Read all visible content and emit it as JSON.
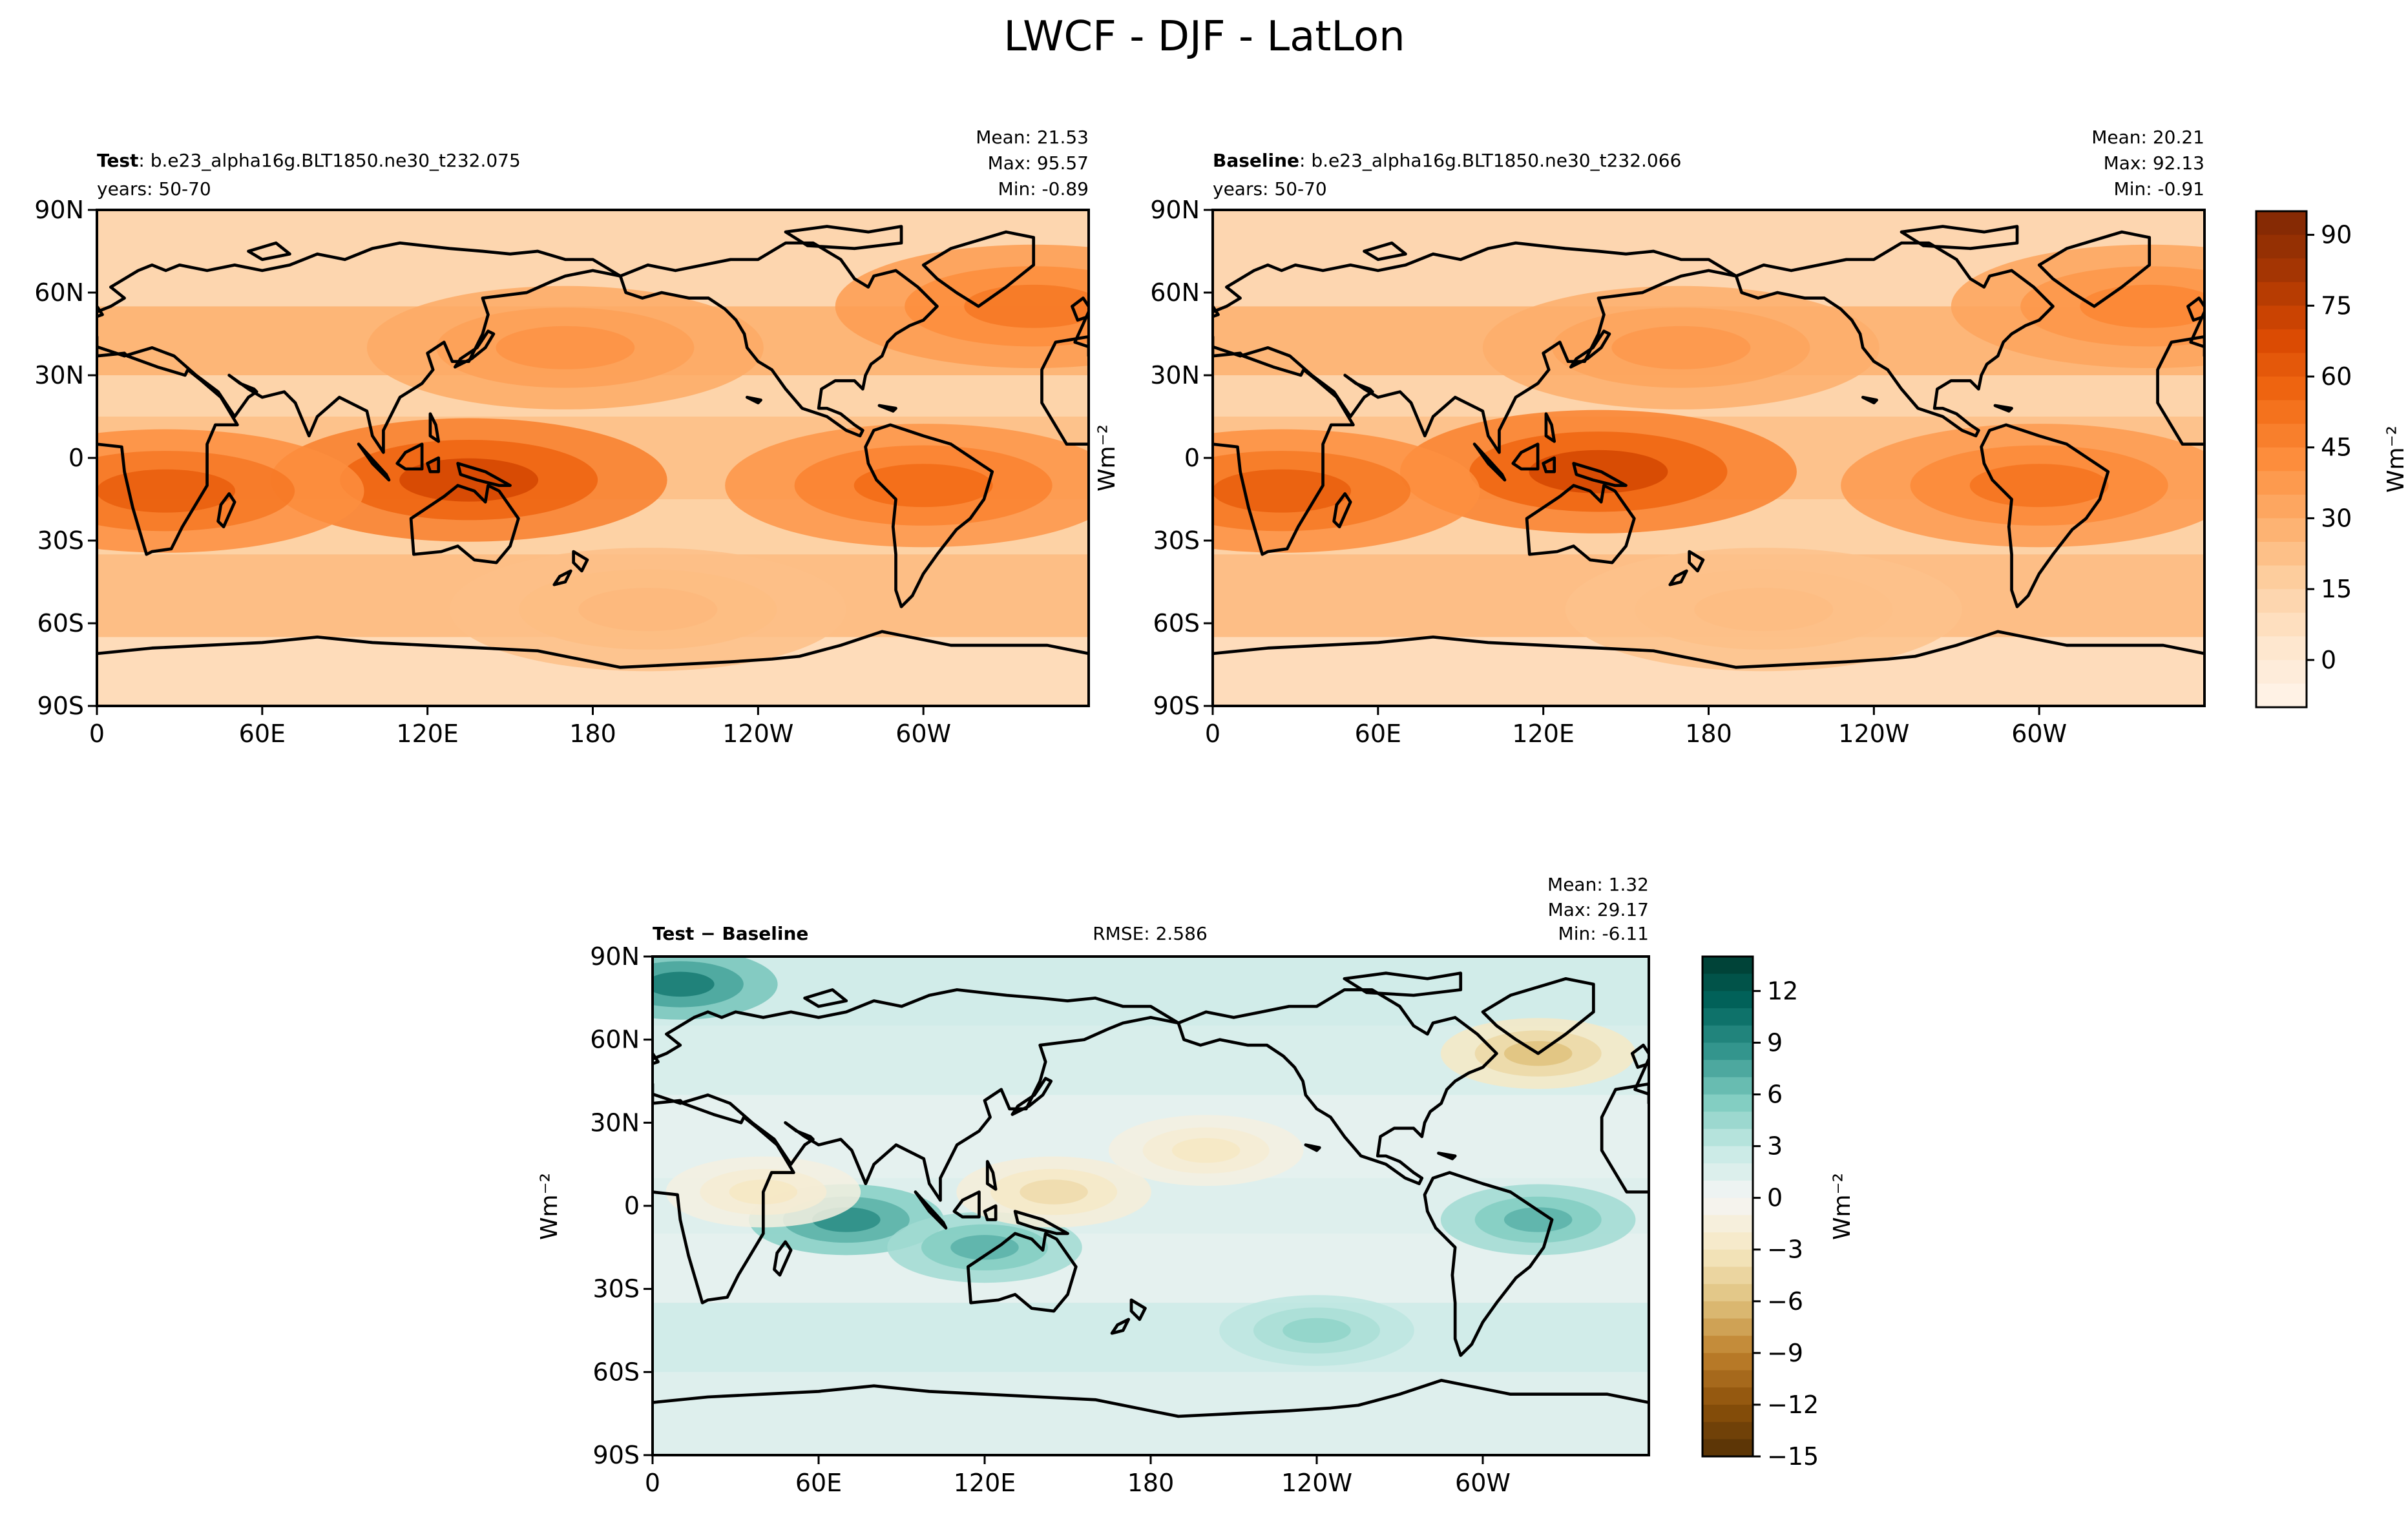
{
  "suptitle": "LWCF - DJF - LatLon",
  "colors": {
    "oranges": [
      "#fff5eb",
      "#fee6ce",
      "#fdd0a2",
      "#fdae6b",
      "#fd8d3c",
      "#f16913",
      "#d94801",
      "#a63603",
      "#7f2704"
    ],
    "brbg": [
      "#543005",
      "#8c510a",
      "#bf812d",
      "#dfc27d",
      "#f6e8c3",
      "#f5f5f5",
      "#c7eae5",
      "#80cdc1",
      "#35978f",
      "#01665e",
      "#003c30"
    ],
    "coast": "#000000",
    "ocean_base_test": "#fde3c8"
  },
  "panels": [
    {
      "key": "test",
      "label_bold": "Test",
      "label_rest": ": b.e23_alpha16g.BLT1850.ne30_t232.075",
      "years": "years: 50-70",
      "stats": [
        "Mean: 21.53",
        "Max: 95.57",
        "Min: -0.89"
      ],
      "ylabel": "",
      "rmse": ""
    },
    {
      "key": "baseline",
      "label_bold": "Baseline",
      "label_rest": ": b.e23_alpha16g.BLT1850.ne30_t232.066",
      "years": "years: 50-70",
      "stats": [
        "Mean: 20.21",
        "Max: 92.13",
        "Min: -0.91"
      ],
      "ylabel": "Wm⁻²",
      "rmse": ""
    },
    {
      "key": "diff",
      "label_bold": "Test − Baseline",
      "label_rest": "",
      "years": "",
      "stats": [
        "Mean:  1.32",
        "Max: 29.17",
        "Min: -6.11"
      ],
      "ylabel": "Wm⁻²",
      "rmse": "RMSE: 2.586"
    }
  ],
  "axes": {
    "lat_ticks": [
      "90N",
      "60N",
      "30N",
      "0",
      "30S",
      "60S",
      "90S"
    ],
    "lon_ticks": [
      "0",
      "60E",
      "120E",
      "180",
      "120W",
      "60W"
    ]
  },
  "colorbars": [
    {
      "key": "top",
      "label": "Wm⁻²",
      "vmin": -10,
      "vmax": 95,
      "ticks": [
        "90",
        "75",
        "60",
        "45",
        "30",
        "15",
        "0"
      ],
      "tick_values": [
        90,
        75,
        60,
        45,
        30,
        15,
        0
      ]
    },
    {
      "key": "diff",
      "label": "Wm⁻²",
      "vmin": -15,
      "vmax": 14,
      "ticks": [
        "12",
        "9",
        "6",
        "3",
        "0",
        "−3",
        "−6",
        "−9",
        "−12",
        "−15"
      ],
      "tick_values": [
        12,
        9,
        6,
        3,
        0,
        -3,
        -6,
        -9,
        -12,
        -15
      ]
    }
  ],
  "chart_data": [
    {
      "type": "heatmap",
      "title": "Test: b.e23_alpha16g.BLT1850.ne30_t232.075",
      "subtitle": "years: 50-70",
      "variable": "LWCF",
      "season": "DJF",
      "units": "Wm⁻²",
      "stats": {
        "mean": 21.53,
        "max": 95.57,
        "min": -0.89
      },
      "xlim": [
        0,
        360
      ],
      "ylim": [
        -90,
        90
      ],
      "colorbar_range": [
        -10,
        95
      ],
      "features": [
        {
          "lon": 135,
          "lat": -8,
          "value": 70
        },
        {
          "lon": 25,
          "lat": -12,
          "value": 60
        },
        {
          "lon": 300,
          "lat": -10,
          "value": 55
        },
        {
          "lon": 340,
          "lat": 55,
          "value": 50
        },
        {
          "lon": 170,
          "lat": 40,
          "value": 40
        },
        {
          "lon": 200,
          "lat": -55,
          "value": 25
        }
      ]
    },
    {
      "type": "heatmap",
      "title": "Baseline: b.e23_alpha16g.BLT1850.ne30_t232.066",
      "subtitle": "years: 50-70",
      "variable": "LWCF",
      "season": "DJF",
      "units": "Wm⁻²",
      "stats": {
        "mean": 20.21,
        "max": 92.13,
        "min": -0.91
      },
      "xlim": [
        0,
        360
      ],
      "ylim": [
        -90,
        90
      ],
      "colorbar_range": [
        -10,
        95
      ],
      "features": [
        {
          "lon": 140,
          "lat": -5,
          "value": 70
        },
        {
          "lon": 25,
          "lat": -12,
          "value": 60
        },
        {
          "lon": 300,
          "lat": -10,
          "value": 52
        },
        {
          "lon": 340,
          "lat": 55,
          "value": 45
        },
        {
          "lon": 170,
          "lat": 40,
          "value": 38
        },
        {
          "lon": 200,
          "lat": -55,
          "value": 24
        }
      ]
    },
    {
      "type": "heatmap",
      "title": "Test − Baseline",
      "variable": "LWCF",
      "season": "DJF",
      "units": "Wm⁻²",
      "rmse": 2.586,
      "stats": {
        "mean": 1.32,
        "max": 29.17,
        "min": -6.11
      },
      "xlim": [
        0,
        360
      ],
      "ylim": [
        -90,
        90
      ],
      "colorbar_range": [
        -15,
        14
      ],
      "features": [
        {
          "lon": 70,
          "lat": -5,
          "value": 9
        },
        {
          "lon": 120,
          "lat": -15,
          "value": 7
        },
        {
          "lon": 320,
          "lat": -5,
          "value": 7
        },
        {
          "lon": 40,
          "lat": 5,
          "value": -3
        },
        {
          "lon": 145,
          "lat": 5,
          "value": -4
        },
        {
          "lon": 200,
          "lat": 20,
          "value": -3
        },
        {
          "lon": 320,
          "lat": 55,
          "value": -6
        },
        {
          "lon": 10,
          "lat": 80,
          "value": 10
        },
        {
          "lon": 240,
          "lat": -45,
          "value": 5
        }
      ]
    }
  ]
}
